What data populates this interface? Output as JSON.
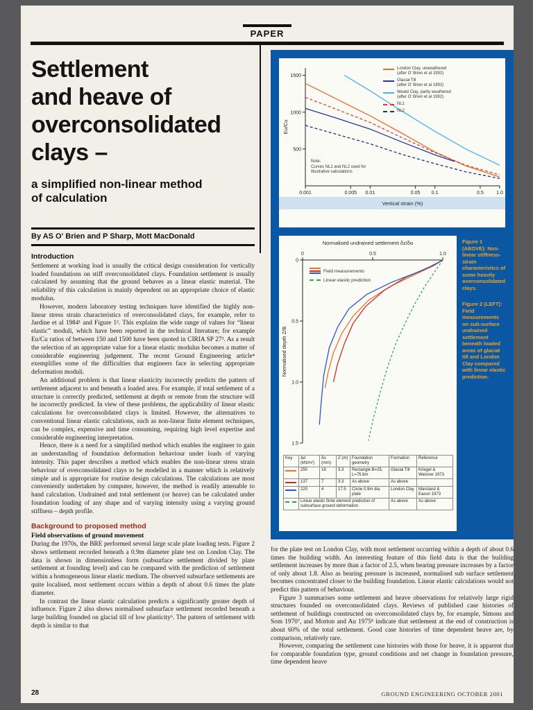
{
  "page": {
    "header_label": "PAPER",
    "footer_page_number": "28",
    "footer_journal": "GROUND ENGINEERING OCTOBER 2001"
  },
  "colors": {
    "panel_blue": "#0b57a4",
    "caption_orange": "#f2a31f",
    "heading_red": "#9e2b1e",
    "paper": "#f2efe8",
    "surround_gray": "#59595c"
  },
  "article": {
    "title": "Settlement\nand heave of\noverconsolidated\nclays –",
    "subtitle": "a simplified non-linear method\nof calculation",
    "byline": "By AS O' Brien and P Sharp, Mott MacDonald",
    "introduction": {
      "heading": "Introduction",
      "paragraphs": [
        "Settlement at working load is usually the critical design consideration for vertically loaded foundations on stiff overconsolidated clays. Foundation settlement is usually calculated by assuming that the ground behaves as a linear elastic material. The reliability of this calculation is mainly dependent on an appropriate choice of elastic modulus.",
        "However, modern laboratory testing techniques have identified the highly non-linear stress strain characteristics of overconsolidated clays, for example, refer to Jardine et al 1984¹ and Figure 1². This explains the wide range of values for “linear elastic” moduli, which have been reported in the technical literature; for example Eu/Cu ratios of between 150 and 1500 have been quoted in CIRIA SP 27³. As a result the selection of an appropriate value for a linear elastic modulus becomes a matter of considerable engineering judgement. The recent Ground Engineering article⁴ exemplifies some of the difficulties that engineers face in selecting appropriate deformation moduli.",
        "An additional problem is that linear elasticity incorrectly predicts the pattern of settlement adjacent to and beneath a loaded area. For example, if total settlement of a structure is correctly predicted, settlement at depth or remote from the structure will be incorrectly predicted. In view of these problems, the applicability of linear elastic calculations for overconsolidated clays is limited. However, the alternatives to conventional linear elastic calculations, such as non-linear finite element techniques, can be complex, expensive and time consuming, requiring high level expertise and considerable engineering interpretation.",
        "Hence, there is a need for a simplified method which enables the engineer to gain an understanding of foundation deformation behaviour under loads of varying intensity. This paper describes a method which enables the non-linear stress strain behaviour of overconsolidated clays to be modelled in a manner which is relatively simple and is appropriate for routine design calculations. The calculations are most conveniently undertaken by computer, however, the method is readily amenable to hand calculation. Undrained and total settlement (or heave) can be calculated under foundation loading of any shape and of varying intensity using a varying ground stiffness – depth profile."
      ]
    },
    "background": {
      "heading": "Background to proposed method",
      "subheading": "Field observations of ground movement",
      "paragraphs": [
        "During the 1970s, the BRE performed several large scale plate loading tests. Figure 2 shows settlement recorded beneath a 0.9m diameter plate test on London Clay. The data is shown in dimensionless form (subsurface settlement divided by plate settlement at founding level) and can be compared with the prediction of settlement within a homogeneous linear elastic medium. The observed subsurface settlements are quite localised, most settlement occurs within a depth of about 0.6 times the plate diameter.",
        "In contrast the linear elastic calculation predicts a significantly greater depth of influence. Figure 2 also shows normalised subsurface settlement recorded beneath a large building founded on glacial till of low plasticity⁶. The pattern of settlement with depth is similar to that"
      ]
    },
    "right_column_paragraphs": [
      "for the plate test on London Clay, with most settlement occurring within a depth of about 0.6 times the building width. An interesting feature of this field data is that the building settlement increases by more than a factor of 2.5, when bearing pressure increases by a factor of only about 1.8. Also as bearing pressure is increased, normalised sub surface settlement becomes concentrated closer to the building foundation. Linear elastic calculations would not predict this pattern of behaviour.",
      "Figure 3 summarises some settlement and heave observations for relatively large rigid structures founded on overconsolidated clays. Reviews of published case histories of settlement of buildings constructed on overconsolidated clays by, for example, Simons and Som 1970⁷, and Morton and Au 1975⁸ indicate that settlement at the end of construction is about 60% of the total settlement. Good case histories of time dependent heave are, by comparison, relatively rare.",
      "However, comparing the settlement case histories with those for heave, it is apparent that for comparable foundation type, ground conditions and net change in foundation pressure, time dependent heave"
    ]
  },
  "figure1": {
    "caption_title": "Figure 1 (ABOVE):",
    "caption_body": "Non-linear stiffness-strain characteristics of some heavily overconsolidated clays.",
    "note": "Note:\nCurves NL1 and NL2 used for\nillustrative calculations"
  },
  "figure2": {
    "title": "Normalised undrained settlement δz/δo",
    "caption_title": "Figure 2 (LEFT):",
    "caption_body": "Field measurements on sub-surface undrained settlement beneath loaded areas of glacial till and London Clay compared with linear elastic prediction.",
    "legend": {
      "field_label": "Field measurements",
      "elastic_label": "Linear elastic prediction"
    },
    "key_table": {
      "columns": [
        "Key",
        "Δσ (kN/m²)",
        "δo (mm)",
        "Z (m)",
        "Foundation geometry",
        "Formation",
        "Reference"
      ],
      "rows": [
        {
          "series_index": 0,
          "cells": [
            "250",
            "18",
            "3.3",
            "Rectangle B=25, L=75.6m",
            "Glacial Till",
            "Kriegel & Weisner 1973"
          ]
        },
        {
          "series_index": 1,
          "cells": [
            "137",
            "7",
            "3.3",
            "As above",
            "As above",
            ""
          ]
        },
        {
          "series_index": 2,
          "cells": [
            "220",
            "4",
            "17.5",
            "Circle 0.9m dia. plate",
            "London Clay",
            "Marsland & Eason 1973"
          ]
        },
        {
          "series_index": 3,
          "cells": [
            "",
            "",
            "",
            "Linear elastic finite element prediction of subsurface ground deformation",
            "As above",
            "As above"
          ]
        }
      ]
    }
  },
  "chart_data": [
    {
      "id": "figure1",
      "type": "line",
      "title": "",
      "xlabel": "Vertical strain (%)",
      "ylabel": "Eu/Cu",
      "x_scale": "log",
      "xlim": [
        0.001,
        1.0
      ],
      "ylim": [
        0,
        1600
      ],
      "x_ticks": [
        0.001,
        0.005,
        0.01,
        0.05,
        0.1,
        0.5,
        1.0
      ],
      "x_tick_labels": [
        "0.001",
        "0.005",
        "0.01",
        "0.05",
        "0.1",
        "0.5",
        "1.0"
      ],
      "y_ticks": [
        500,
        1000,
        1500
      ],
      "y_tick_labels": [
        "500",
        "1000",
        "1500"
      ],
      "grid": false,
      "legend_position": "top-right",
      "series": [
        {
          "name": "London Clay, unweathered\n(after O' Brien et al 1992)",
          "color": "#e46f2e",
          "dash": "none",
          "points": [
            [
              0.001,
              1390
            ],
            [
              0.003,
              1180
            ],
            [
              0.01,
              950
            ],
            [
              0.03,
              720
            ],
            [
              0.1,
              460
            ],
            [
              0.3,
              270
            ],
            [
              1.0,
              120
            ]
          ]
        },
        {
          "name": "Glacial Till\n(after O' Brien et al 1992)",
          "color": "#23379b",
          "dash": "none",
          "points": [
            [
              0.001,
              1050
            ],
            [
              0.003,
              920
            ],
            [
              0.01,
              770
            ],
            [
              0.03,
              600
            ],
            [
              0.1,
              420
            ],
            [
              0.2,
              330
            ]
          ]
        },
        {
          "name": "Weald Clay, partly weathered\n(after O' Brien et al 1992)",
          "color": "#45b4e6",
          "dash": "none",
          "points": [
            [
              0.004,
              1500
            ],
            [
              0.01,
              1290
            ],
            [
              0.03,
              1020
            ],
            [
              0.1,
              740
            ],
            [
              0.3,
              500
            ],
            [
              1.0,
              280
            ]
          ]
        },
        {
          "name": "NL1",
          "color": "#e03a2f",
          "dash": "4 3",
          "points": [
            [
              0.001,
              1200
            ],
            [
              0.003,
              1040
            ],
            [
              0.01,
              860
            ],
            [
              0.03,
              660
            ],
            [
              0.1,
              450
            ],
            [
              0.3,
              280
            ],
            [
              1.0,
              150
            ]
          ]
        },
        {
          "name": "NL2",
          "color": "#1b2f73",
          "dash": "4 3",
          "points": [
            [
              0.001,
              820
            ],
            [
              0.003,
              700
            ],
            [
              0.01,
              570
            ],
            [
              0.03,
              430
            ],
            [
              0.1,
              300
            ],
            [
              0.3,
              190
            ],
            [
              1.0,
              100
            ]
          ]
        }
      ]
    },
    {
      "id": "figure2",
      "type": "line",
      "title": "Normalised undrained settlement δz/δo",
      "xlabel": "Normalised undrained settlement δz/δo",
      "ylabel": "Normalised depth Z/B",
      "x_scale": "linear",
      "y_inverted": true,
      "xlim": [
        0,
        1.0
      ],
      "ylim": [
        0,
        1.5
      ],
      "x_ticks": [
        0,
        0.5,
        1.0
      ],
      "x_tick_labels": [
        "0",
        "0.5",
        "1.0"
      ],
      "y_ticks": [
        0,
        0.5,
        1.0,
        1.5
      ],
      "y_tick_labels": [
        "0",
        "0.5",
        "1.0",
        "1.5"
      ],
      "grid": false,
      "legend_position": "top-left",
      "series": [
        {
          "name": "Building Δσ=250 kN/m² (field)",
          "color": "#e4752e",
          "dash": "none",
          "points": [
            [
              1.0,
              0.0
            ],
            [
              0.93,
              0.05
            ],
            [
              0.8,
              0.12
            ],
            [
              0.62,
              0.22
            ],
            [
              0.47,
              0.33
            ],
            [
              0.36,
              0.46
            ],
            [
              0.28,
              0.6
            ],
            [
              0.22,
              0.76
            ],
            [
              0.18,
              0.93
            ],
            [
              0.16,
              1.05
            ]
          ]
        },
        {
          "name": "Building Δσ=137 kN/m² (field)",
          "color": "#cf2b24",
          "dash": "none",
          "points": [
            [
              1.0,
              0.0
            ],
            [
              0.9,
              0.06
            ],
            [
              0.74,
              0.14
            ],
            [
              0.58,
              0.25
            ],
            [
              0.45,
              0.38
            ],
            [
              0.36,
              0.52
            ],
            [
              0.3,
              0.68
            ],
            [
              0.25,
              0.85
            ],
            [
              0.22,
              1.0
            ]
          ]
        },
        {
          "name": "Plate Δσ=220 kN/m² (field)",
          "color": "#2c55c0",
          "dash": "none",
          "points": [
            [
              1.0,
              0.0
            ],
            [
              0.94,
              0.04
            ],
            [
              0.82,
              0.1
            ],
            [
              0.64,
              0.18
            ],
            [
              0.46,
              0.28
            ],
            [
              0.33,
              0.4
            ],
            [
              0.25,
              0.55
            ],
            [
              0.19,
              0.72
            ],
            [
              0.15,
              0.95
            ],
            [
              0.13,
              1.2
            ],
            [
              0.12,
              1.35
            ]
          ]
        },
        {
          "name": "Linear elastic prediction",
          "color": "#2f9e57",
          "dash": "3 3",
          "points": [
            [
              1.0,
              0.0
            ],
            [
              0.94,
              0.1
            ],
            [
              0.87,
              0.22
            ],
            [
              0.8,
              0.36
            ],
            [
              0.73,
              0.52
            ],
            [
              0.66,
              0.7
            ],
            [
              0.6,
              0.9
            ],
            [
              0.55,
              1.1
            ],
            [
              0.5,
              1.32
            ],
            [
              0.47,
              1.48
            ]
          ]
        }
      ]
    }
  ]
}
